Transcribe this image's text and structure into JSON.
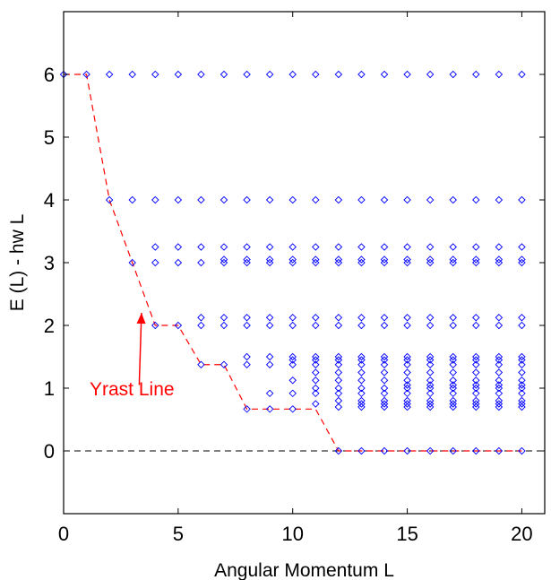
{
  "chart_data": {
    "type": "scatter",
    "title": "",
    "xlabel": "Angular Momentum L",
    "ylabel": "E (L) - hw L",
    "xlim": [
      0,
      21
    ],
    "ylim": [
      -1,
      7
    ],
    "xticks": [
      "0",
      "5",
      "10",
      "15",
      "20"
    ],
    "yticks": [
      "0",
      "1",
      "2",
      "3",
      "4",
      "5",
      "6"
    ],
    "grid": false,
    "legend": "none",
    "colors": {
      "markers": "#0000ff",
      "yrast": "#ff0000",
      "zero_line": "#000000",
      "annotation": "#ff0000"
    },
    "series": [
      {
        "marker": "diamond",
        "points": [
          [
            0,
            6
          ],
          [
            1,
            6
          ],
          [
            2,
            4
          ],
          [
            2,
            6
          ],
          [
            3,
            3
          ],
          [
            3,
            4
          ],
          [
            3,
            6
          ],
          [
            4,
            2
          ],
          [
            4,
            3
          ],
          [
            4,
            3.25
          ],
          [
            4,
            4
          ],
          [
            4,
            6
          ],
          [
            5,
            2
          ],
          [
            5,
            3
          ],
          [
            5,
            3.25
          ],
          [
            5,
            4
          ],
          [
            5,
            6
          ],
          [
            6,
            1.375
          ],
          [
            6,
            2
          ],
          [
            6,
            2.125
          ],
          [
            6,
            3
          ],
          [
            6,
            3.25
          ],
          [
            6,
            4
          ],
          [
            6,
            6
          ],
          [
            7,
            1.375
          ],
          [
            7,
            2
          ],
          [
            7,
            2.125
          ],
          [
            7,
            3
          ],
          [
            7,
            3.05
          ],
          [
            7,
            3.25
          ],
          [
            7,
            4
          ],
          [
            7,
            6
          ],
          [
            8,
            0.667
          ],
          [
            8,
            1.375
          ],
          [
            8,
            1.5
          ],
          [
            8,
            2
          ],
          [
            8,
            2.125
          ],
          [
            8,
            3
          ],
          [
            8,
            3.05
          ],
          [
            8,
            3.25
          ],
          [
            8,
            4
          ],
          [
            8,
            6
          ],
          [
            9,
            0.667
          ],
          [
            9,
            0.917
          ],
          [
            9,
            1.375
          ],
          [
            9,
            1.5
          ],
          [
            9,
            2
          ],
          [
            9,
            2.125
          ],
          [
            9,
            3
          ],
          [
            9,
            3.05
          ],
          [
            9,
            3.25
          ],
          [
            9,
            4
          ],
          [
            9,
            6
          ],
          [
            10,
            0.667
          ],
          [
            10,
            0.917
          ],
          [
            10,
            1.125
          ],
          [
            10,
            1.375
          ],
          [
            10,
            1.45
          ],
          [
            10,
            1.5
          ],
          [
            10,
            2
          ],
          [
            10,
            2.125
          ],
          [
            10,
            3
          ],
          [
            10,
            3.05
          ],
          [
            10,
            3.25
          ],
          [
            10,
            4
          ],
          [
            10,
            6
          ],
          [
            11,
            0.75
          ],
          [
            11,
            0.917
          ],
          [
            11,
            1.0
          ],
          [
            11,
            1.125
          ],
          [
            11,
            1.25
          ],
          [
            11,
            1.375
          ],
          [
            11,
            1.45
          ],
          [
            11,
            1.5
          ],
          [
            11,
            2
          ],
          [
            11,
            2.125
          ],
          [
            11,
            3
          ],
          [
            11,
            3.05
          ],
          [
            11,
            3.25
          ],
          [
            11,
            4
          ],
          [
            11,
            6
          ],
          [
            12,
            0
          ],
          [
            12,
            0.7
          ],
          [
            12,
            0.8
          ],
          [
            12,
            0.917
          ],
          [
            12,
            1.0
          ],
          [
            12,
            1.125
          ],
          [
            12,
            1.25
          ],
          [
            12,
            1.375
          ],
          [
            12,
            1.45
          ],
          [
            12,
            1.5
          ],
          [
            12,
            2
          ],
          [
            12,
            2.125
          ],
          [
            12,
            3
          ],
          [
            12,
            3.05
          ],
          [
            12,
            3.25
          ],
          [
            12,
            4
          ],
          [
            12,
            6
          ],
          [
            13,
            0
          ],
          [
            13,
            0.7
          ],
          [
            13,
            0.75
          ],
          [
            13,
            0.8
          ],
          [
            13,
            0.917
          ],
          [
            13,
            1.0
          ],
          [
            13,
            1.125
          ],
          [
            13,
            1.25
          ],
          [
            13,
            1.375
          ],
          [
            13,
            1.45
          ],
          [
            13,
            1.5
          ],
          [
            13,
            2
          ],
          [
            13,
            2.125
          ],
          [
            13,
            3
          ],
          [
            13,
            3.05
          ],
          [
            13,
            3.25
          ],
          [
            13,
            4
          ],
          [
            13,
            6
          ],
          [
            14,
            0
          ],
          [
            14,
            0.7
          ],
          [
            14,
            0.75
          ],
          [
            14,
            0.8
          ],
          [
            14,
            0.917
          ],
          [
            14,
            1.0
          ],
          [
            14,
            1.125
          ],
          [
            14,
            1.25
          ],
          [
            14,
            1.375
          ],
          [
            14,
            1.45
          ],
          [
            14,
            1.5
          ],
          [
            14,
            2
          ],
          [
            14,
            2.125
          ],
          [
            14,
            3
          ],
          [
            14,
            3.05
          ],
          [
            14,
            3.25
          ],
          [
            14,
            4
          ],
          [
            14,
            6
          ],
          [
            15,
            0
          ],
          [
            15,
            0.7
          ],
          [
            15,
            0.75
          ],
          [
            15,
            0.8
          ],
          [
            15,
            0.917
          ],
          [
            15,
            1.0
          ],
          [
            15,
            1.05
          ],
          [
            15,
            1.125
          ],
          [
            15,
            1.25
          ],
          [
            15,
            1.375
          ],
          [
            15,
            1.45
          ],
          [
            15,
            1.5
          ],
          [
            15,
            2
          ],
          [
            15,
            2.125
          ],
          [
            15,
            3
          ],
          [
            15,
            3.05
          ],
          [
            15,
            3.25
          ],
          [
            15,
            4
          ],
          [
            15,
            6
          ],
          [
            16,
            0
          ],
          [
            16,
            0.7
          ],
          [
            16,
            0.75
          ],
          [
            16,
            0.8
          ],
          [
            16,
            0.917
          ],
          [
            16,
            1.0
          ],
          [
            16,
            1.05
          ],
          [
            16,
            1.125
          ],
          [
            16,
            1.25
          ],
          [
            16,
            1.375
          ],
          [
            16,
            1.45
          ],
          [
            16,
            1.5
          ],
          [
            16,
            2
          ],
          [
            16,
            2.125
          ],
          [
            16,
            3
          ],
          [
            16,
            3.05
          ],
          [
            16,
            3.25
          ],
          [
            16,
            4
          ],
          [
            16,
            6
          ],
          [
            17,
            0
          ],
          [
            17,
            0.7
          ],
          [
            17,
            0.75
          ],
          [
            17,
            0.8
          ],
          [
            17,
            0.917
          ],
          [
            17,
            1.0
          ],
          [
            17,
            1.05
          ],
          [
            17,
            1.125
          ],
          [
            17,
            1.25
          ],
          [
            17,
            1.375
          ],
          [
            17,
            1.45
          ],
          [
            17,
            1.5
          ],
          [
            17,
            2
          ],
          [
            17,
            2.125
          ],
          [
            17,
            3
          ],
          [
            17,
            3.05
          ],
          [
            17,
            3.25
          ],
          [
            17,
            4
          ],
          [
            17,
            6
          ],
          [
            18,
            0
          ],
          [
            18,
            0.7
          ],
          [
            18,
            0.75
          ],
          [
            18,
            0.8
          ],
          [
            18,
            0.917
          ],
          [
            18,
            1.0
          ],
          [
            18,
            1.05
          ],
          [
            18,
            1.125
          ],
          [
            18,
            1.25
          ],
          [
            18,
            1.375
          ],
          [
            18,
            1.45
          ],
          [
            18,
            1.5
          ],
          [
            18,
            2
          ],
          [
            18,
            2.125
          ],
          [
            18,
            3
          ],
          [
            18,
            3.05
          ],
          [
            18,
            3.25
          ],
          [
            18,
            4
          ],
          [
            18,
            6
          ],
          [
            19,
            0
          ],
          [
            19,
            0.7
          ],
          [
            19,
            0.75
          ],
          [
            19,
            0.8
          ],
          [
            19,
            0.917
          ],
          [
            19,
            1.0
          ],
          [
            19,
            1.05
          ],
          [
            19,
            1.125
          ],
          [
            19,
            1.25
          ],
          [
            19,
            1.375
          ],
          [
            19,
            1.45
          ],
          [
            19,
            1.5
          ],
          [
            19,
            2
          ],
          [
            19,
            2.125
          ],
          [
            19,
            3
          ],
          [
            19,
            3.05
          ],
          [
            19,
            3.25
          ],
          [
            19,
            4
          ],
          [
            19,
            6
          ],
          [
            20,
            0
          ],
          [
            20,
            0.7
          ],
          [
            20,
            0.75
          ],
          [
            20,
            0.8
          ],
          [
            20,
            0.917
          ],
          [
            20,
            1.0
          ],
          [
            20,
            1.05
          ],
          [
            20,
            1.125
          ],
          [
            20,
            1.25
          ],
          [
            20,
            1.375
          ],
          [
            20,
            1.45
          ],
          [
            20,
            1.5
          ],
          [
            20,
            2
          ],
          [
            20,
            2.125
          ],
          [
            20,
            3
          ],
          [
            20,
            3.05
          ],
          [
            20,
            3.25
          ],
          [
            20,
            4
          ],
          [
            20,
            6
          ]
        ]
      }
    ],
    "yrast_line": {
      "style": "dashed",
      "points": [
        [
          0,
          6
        ],
        [
          1,
          6
        ],
        [
          2,
          4
        ],
        [
          3,
          3
        ],
        [
          4,
          2
        ],
        [
          5,
          2
        ],
        [
          6,
          1.375
        ],
        [
          7,
          1.375
        ],
        [
          8,
          0.667
        ],
        [
          9,
          0.667
        ],
        [
          10,
          0.667
        ],
        [
          11,
          0.667
        ],
        [
          12,
          0
        ],
        [
          13,
          0
        ],
        [
          14,
          0
        ],
        [
          15,
          0
        ],
        [
          16,
          0
        ],
        [
          17,
          0
        ],
        [
          18,
          0
        ],
        [
          19,
          0
        ],
        [
          20,
          0
        ]
      ]
    },
    "reference_line": {
      "y": 0,
      "style": "dashed"
    },
    "annotation": {
      "text": "Yrast Line",
      "arrow_from": [
        3.3,
        1.05
      ],
      "arrow_to": [
        3.4,
        2.2
      ]
    }
  }
}
